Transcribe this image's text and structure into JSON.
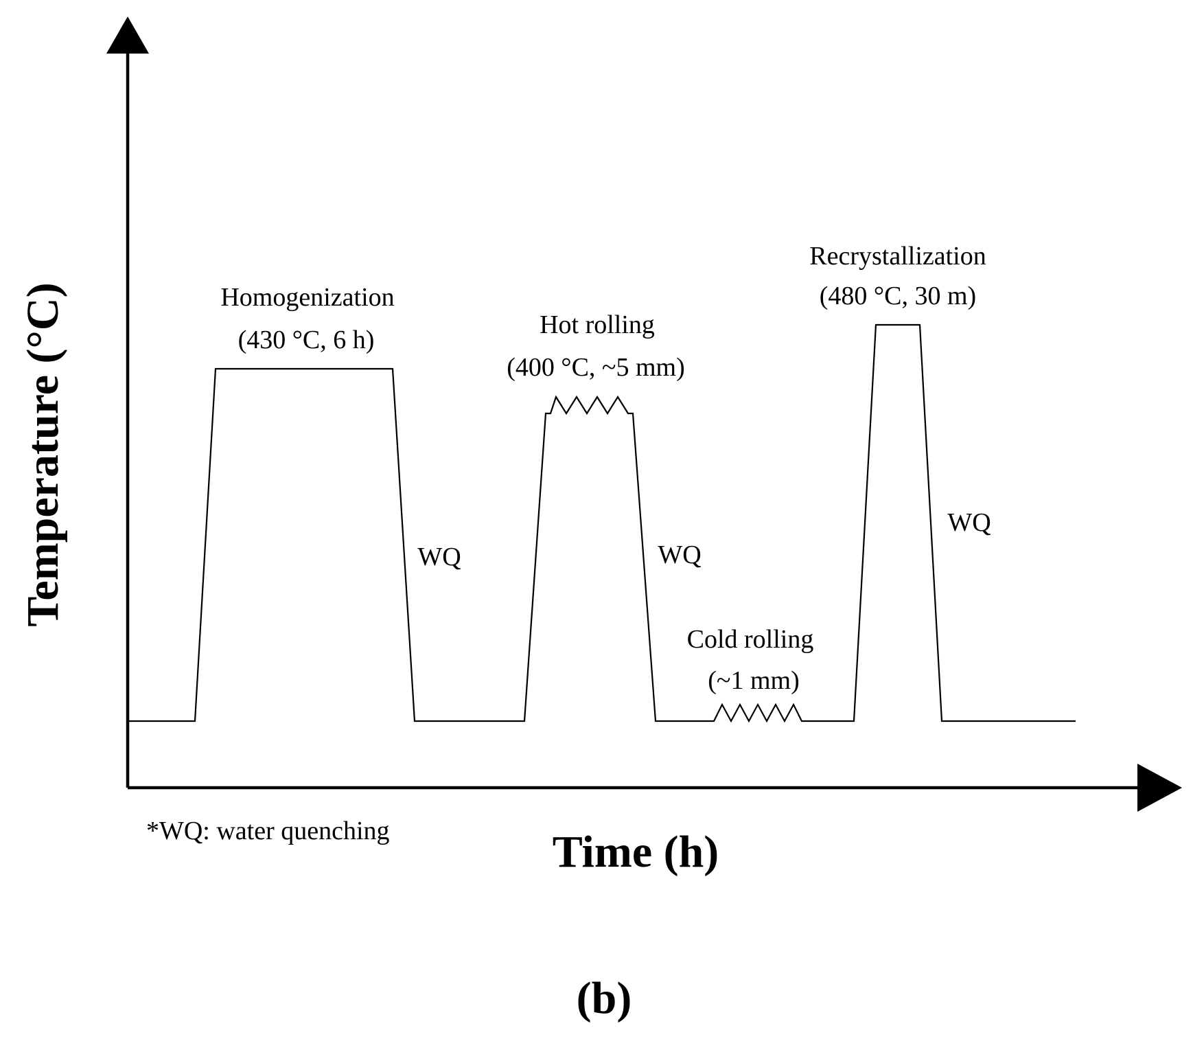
{
  "diagram": {
    "y_axis_title": "Temperature (°C)",
    "x_axis_title": "Time (h)",
    "panel_label": "(b)",
    "footnote": "*WQ: water quenching",
    "stages": [
      {
        "name": "Homogenization",
        "condition": "(430 °C, 6 h)",
        "quench": "WQ"
      },
      {
        "name": "Hot rolling",
        "condition": "(400 °C, ~5 mm)",
        "quench": "WQ"
      },
      {
        "name": "Cold rolling",
        "condition": "(~1 mm)"
      },
      {
        "name": "Recrystallization",
        "condition": "(480 °C, 30 m)",
        "quench": "WQ"
      }
    ]
  }
}
